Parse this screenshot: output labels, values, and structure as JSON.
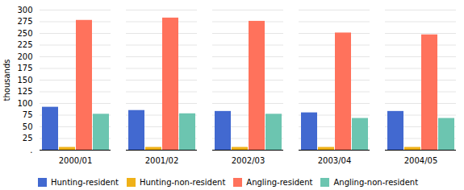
{
  "chart_data": {
    "type": "bar",
    "categories": [
      "2000/01",
      "2001/02",
      "2002/03",
      "2003/04",
      "2004/05"
    ],
    "series": [
      {
        "name": "Hunting-resident",
        "values": [
          92,
          85,
          83,
          80,
          83
        ]
      },
      {
        "name": "Hunting-non-resident",
        "values": [
          6,
          6,
          6,
          6,
          6
        ]
      },
      {
        "name": "Angling-resident",
        "values": [
          278,
          283,
          276,
          251,
          247
        ]
      },
      {
        "name": "Angling-non-resident",
        "values": [
          77,
          78,
          77,
          68,
          68
        ]
      }
    ],
    "ylabel": "thousands",
    "ylim": [
      0,
      300
    ],
    "yticks": [
      {
        "value": 0,
        "label": "."
      },
      25,
      50,
      75,
      100,
      125,
      150,
      175,
      200,
      225,
      250,
      275,
      300
    ],
    "grid": true,
    "legend": "bottom"
  }
}
